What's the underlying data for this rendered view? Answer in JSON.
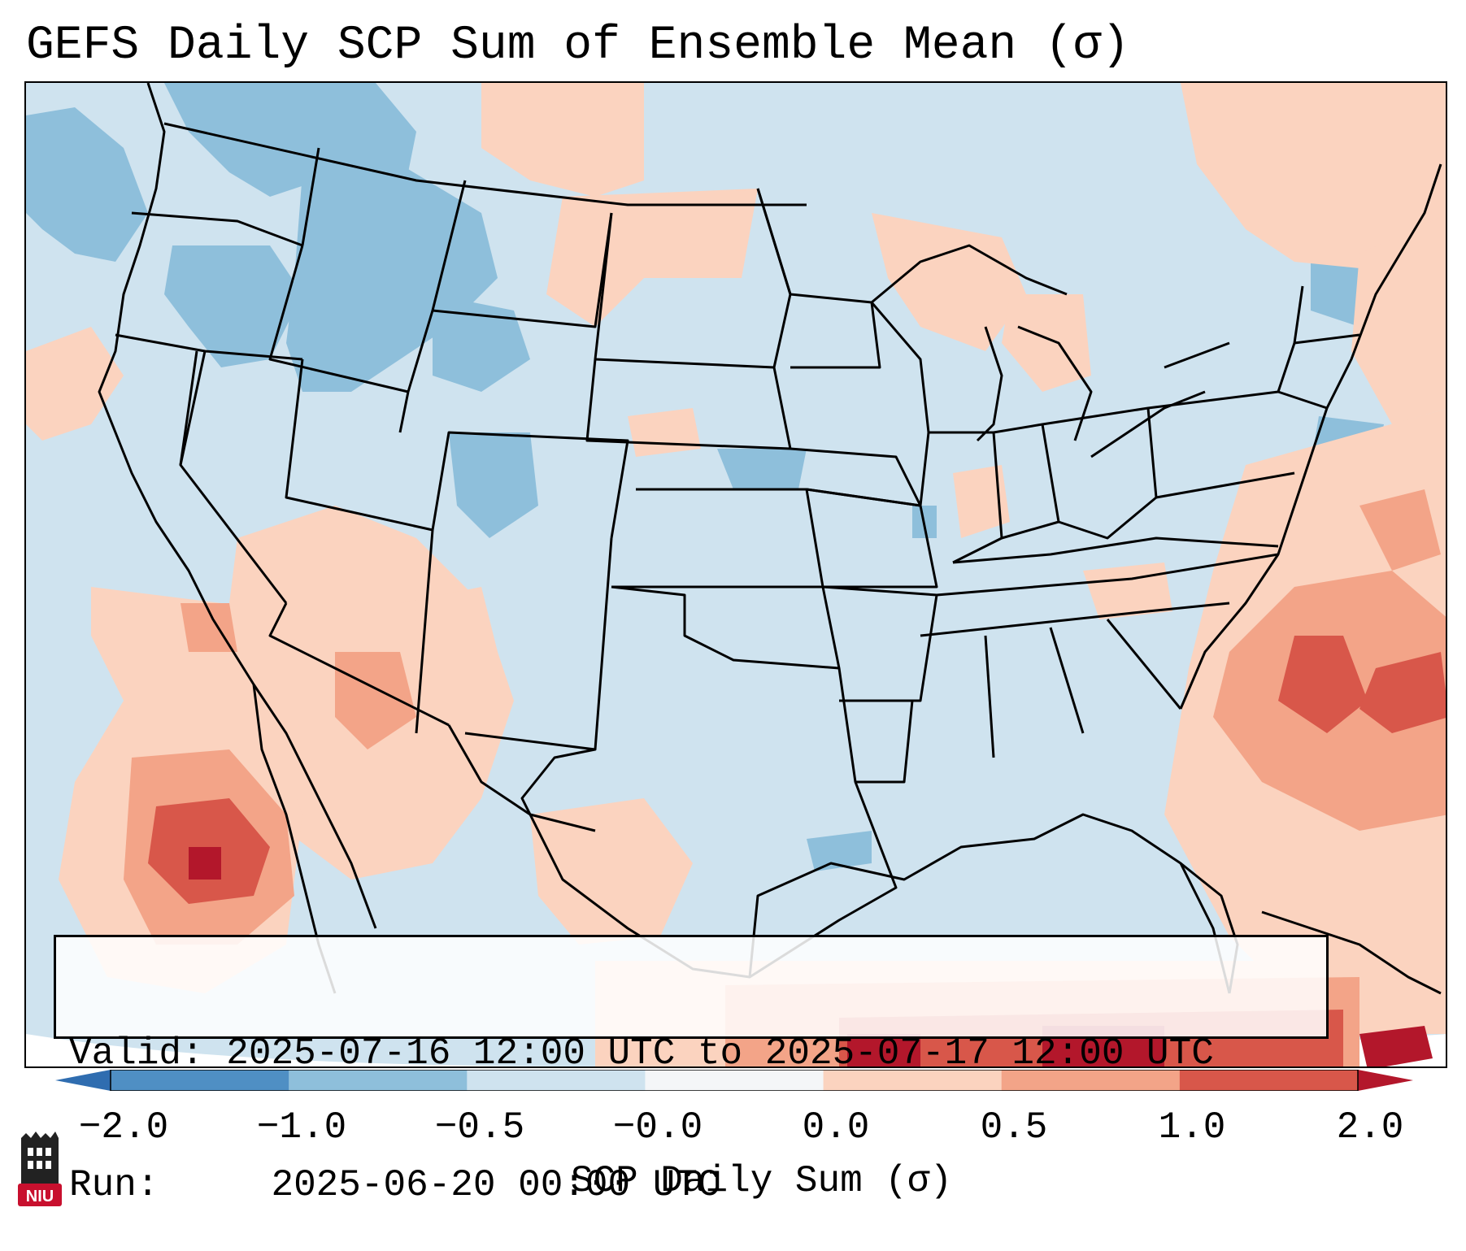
{
  "title": "GEFS Daily SCP Sum of Ensemble Mean (σ)",
  "info": {
    "valid_label": "Valid:",
    "valid_value": "2025-07-16 12:00 UTC to 2025-07-17 12:00 UTC",
    "run_label": "Run:  ",
    "run_value": "2025-06-20 00:00 UTC"
  },
  "colorbar": {
    "label": "SCP Daily Sum (σ)",
    "ticks": [
      "−2.0",
      "−1.0",
      "−0.5",
      "−0.0",
      "0.0",
      "0.5",
      "1.0",
      "2.0"
    ],
    "bin_colors": [
      "#4f8fc4",
      "#8ebfdb",
      "#cfe3ef",
      "#f4f6f8",
      "#fbd3bf",
      "#f3a488",
      "#d8574a"
    ],
    "extend_low_color": "#2f6db0",
    "extend_high_color": "#b3172b"
  },
  "map": {
    "base_color": "#cfe3ef",
    "blue_color": "#8ebfdb",
    "light_red_color": "#fbd3bf",
    "mid_red_color": "#f3a488",
    "dark_red_color": "#d8574a",
    "deep_red_color": "#b3172b",
    "outside_color": "#ffffff"
  },
  "logo": {
    "text": "NIU",
    "color": "#c8102e"
  }
}
